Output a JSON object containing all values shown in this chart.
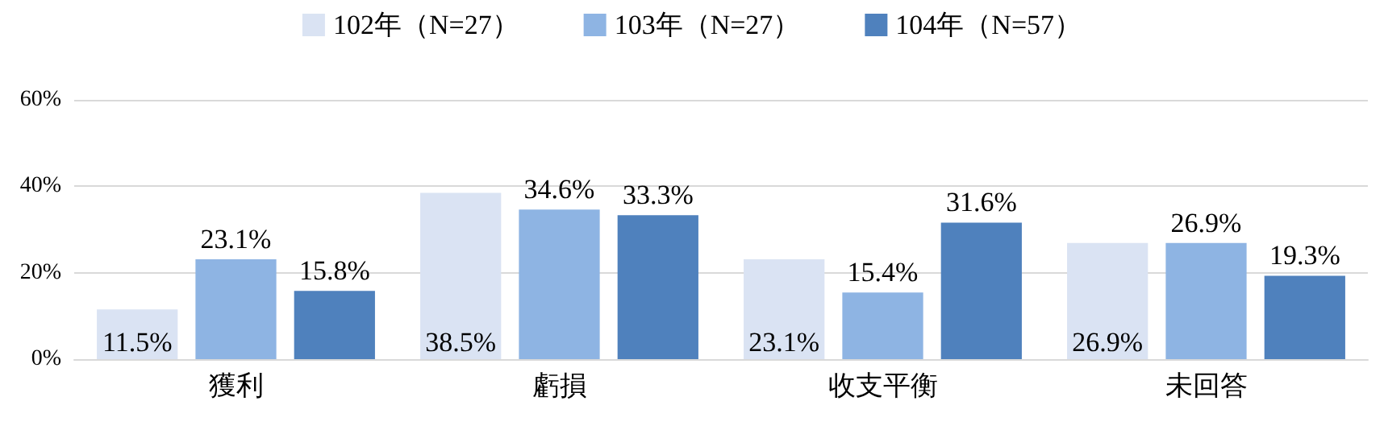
{
  "chart_data": {
    "type": "bar",
    "categories": [
      "獲利",
      "虧損",
      "收支平衡",
      "未回答"
    ],
    "series": [
      {
        "name": "102年（N=27）",
        "color": "#dae3f3",
        "values": [
          11.5,
          38.5,
          23.1,
          26.9
        ],
        "value_labels": [
          "11.5%",
          "38.5%",
          "23.1%",
          "26.9%"
        ]
      },
      {
        "name": "103年（N=27）",
        "color": "#8eb4e3",
        "values": [
          23.1,
          34.6,
          15.4,
          26.9
        ],
        "value_labels": [
          "23.1%",
          "34.6%",
          "15.4%",
          "26.9%"
        ]
      },
      {
        "name": "104年（N=57）",
        "color": "#4f81bd",
        "values": [
          15.8,
          33.3,
          31.6,
          19.3
        ],
        "value_labels": [
          "15.8%",
          "33.3%",
          "31.6%",
          "19.3%"
        ]
      }
    ],
    "ylim": [
      0,
      60
    ],
    "yticks": [
      {
        "value": 0,
        "label": "0%"
      },
      {
        "value": 20,
        "label": "20%"
      },
      {
        "value": 40,
        "label": "40%"
      },
      {
        "value": 60,
        "label": "60%"
      }
    ],
    "grid": "y",
    "legend": "top"
  }
}
